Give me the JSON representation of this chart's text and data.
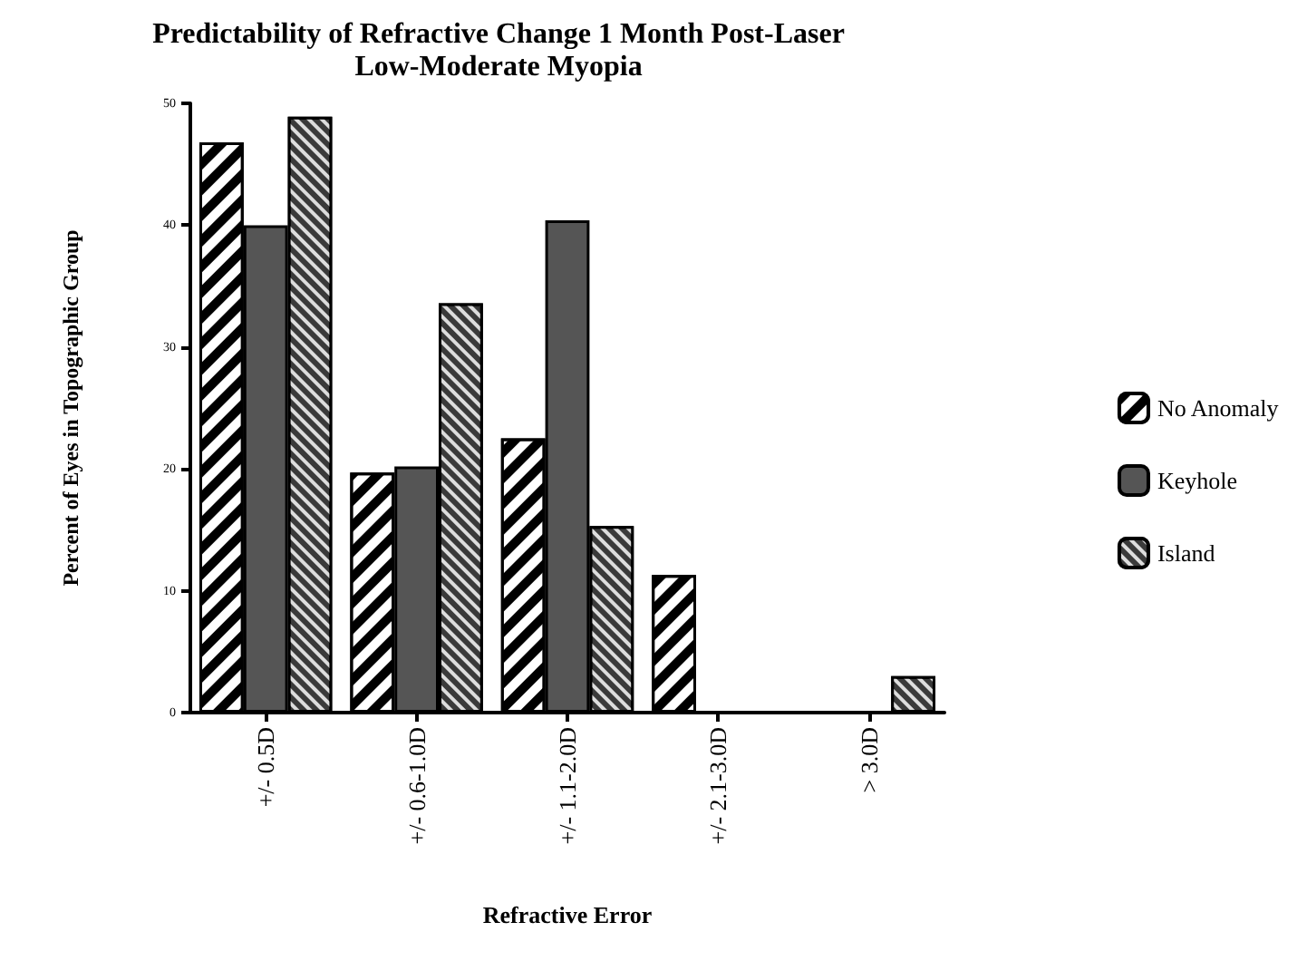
{
  "chart_data": {
    "type": "bar",
    "title": "Predictability of Refractive Change 1 Month Post-Laser\nLow-Moderate Myopia",
    "xlabel": "Refractive Error",
    "ylabel": "Percent of Eyes in Topographic Group",
    "categories": [
      "+/- 0.5D",
      "+/- 0.6-1.0D",
      "+/- 1.1-2.0D",
      "+/- 2.1-3.0D",
      "> 3.0D"
    ],
    "series": [
      {
        "name": "No Anomaly",
        "color": "#ffffff",
        "values": [
          46.8,
          19.7,
          22.5,
          11.3,
          null
        ]
      },
      {
        "name": "Keyhole",
        "color": "#555555",
        "values": [
          40,
          20.2,
          40.4,
          null,
          null
        ]
      },
      {
        "name": "Island",
        "color": "#3a3a3a",
        "values": [
          48.9,
          33.6,
          15.3,
          null,
          3
        ]
      }
    ],
    "ylim": [
      0,
      50
    ],
    "yticks": [
      0,
      10,
      20,
      30,
      40,
      50
    ],
    "grid": false,
    "legend": "right"
  }
}
